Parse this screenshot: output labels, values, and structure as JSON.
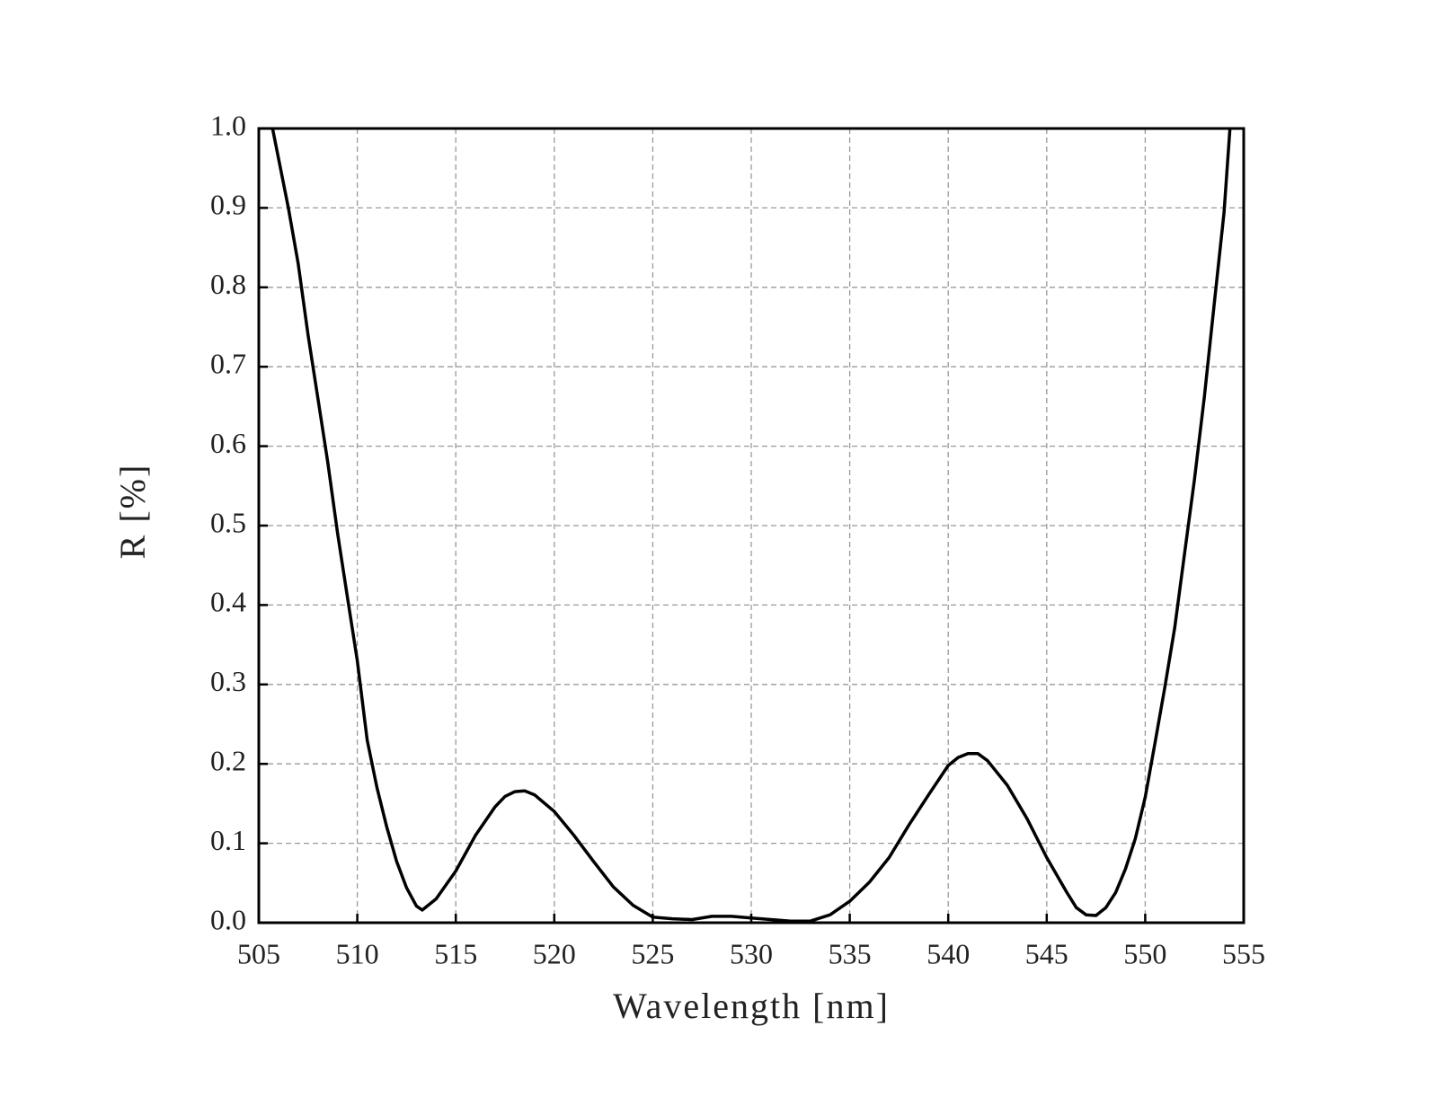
{
  "chart_data": {
    "type": "line",
    "x_label": "Wavelength [nm]",
    "y_label": "R [%]",
    "series": [
      {
        "name": "R",
        "color": "#000000",
        "x": [
          505.7,
          506.1,
          506.5,
          507.0,
          507.5,
          508.0,
          508.5,
          509.0,
          509.5,
          510.0,
          510.5,
          511.0,
          511.5,
          512.0,
          512.5,
          513.0,
          513.3,
          514.0,
          515.0,
          516.0,
          517.0,
          517.5,
          518.0,
          518.5,
          519.0,
          520.0,
          521.0,
          522.0,
          523.0,
          524.0,
          525.0,
          526.0,
          527.0,
          528.0,
          529.0,
          530.0,
          531.0,
          532.0,
          533.0,
          534.0,
          535.0,
          536.0,
          537.0,
          538.0,
          539.0,
          540.0,
          540.5,
          541.0,
          541.5,
          542.0,
          543.0,
          544.0,
          545.0,
          546.0,
          546.5,
          547.0,
          547.5,
          548.0,
          548.5,
          549.0,
          549.5,
          550.0,
          550.5,
          551.0,
          551.5,
          552.0,
          552.5,
          553.0,
          553.5,
          554.0,
          554.3
        ],
        "values": [
          1.0,
          0.95,
          0.9,
          0.83,
          0.74,
          0.66,
          0.58,
          0.49,
          0.41,
          0.33,
          0.23,
          0.17,
          0.12,
          0.077,
          0.044,
          0.021,
          0.016,
          0.03,
          0.065,
          0.11,
          0.146,
          0.159,
          0.165,
          0.166,
          0.161,
          0.14,
          0.11,
          0.077,
          0.045,
          0.022,
          0.007,
          0.005,
          0.004,
          0.008,
          0.008,
          0.006,
          0.004,
          0.002,
          0.002,
          0.01,
          0.027,
          0.051,
          0.082,
          0.123,
          0.161,
          0.198,
          0.208,
          0.213,
          0.213,
          0.204,
          0.173,
          0.131,
          0.082,
          0.039,
          0.019,
          0.01,
          0.009,
          0.019,
          0.038,
          0.068,
          0.106,
          0.158,
          0.227,
          0.297,
          0.372,
          0.465,
          0.558,
          0.662,
          0.778,
          0.894,
          1.0
        ]
      }
    ],
    "xlim": [
      505,
      555
    ],
    "xticks": [
      505,
      510,
      515,
      520,
      525,
      530,
      535,
      540,
      545,
      550,
      555
    ],
    "ylim": [
      0,
      1.0
    ],
    "yticks": [
      {
        "value": 0,
        "label": "0.0"
      },
      0.1,
      0.2,
      0.3,
      0.4,
      0.5,
      0.6,
      0.7,
      0.8,
      0.9,
      {
        "value": 1.0,
        "label": "1.0"
      }
    ],
    "grid": true
  }
}
